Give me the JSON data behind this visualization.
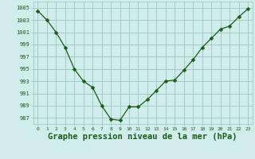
{
  "x": [
    0,
    1,
    2,
    3,
    4,
    5,
    6,
    7,
    8,
    9,
    10,
    11,
    12,
    13,
    14,
    15,
    16,
    17,
    18,
    19,
    20,
    21,
    22,
    23
  ],
  "y": [
    1004.5,
    1003.0,
    1001.0,
    998.5,
    995.0,
    993.0,
    992.0,
    989.0,
    986.8,
    986.6,
    988.8,
    988.8,
    990.0,
    991.5,
    993.0,
    993.2,
    994.8,
    996.5,
    998.5,
    1000.0,
    1001.5,
    1002.0,
    1003.5,
    1004.8
  ],
  "line_color": "#1a5c1a",
  "marker": "D",
  "marker_size": 2.5,
  "background_color": "#d0eceb",
  "grid_color": "#9dc4c3",
  "xlabel": "Graphe pression niveau de la mer (hPa)",
  "xlabel_fontsize": 7.5,
  "ytick_values": [
    987,
    989,
    991,
    993,
    995,
    997,
    999,
    1001,
    1003,
    1005
  ],
  "ylim": [
    986.0,
    1006.0
  ],
  "xlim": [
    -0.5,
    23.5
  ],
  "xtick_labels": [
    "0",
    "1",
    "2",
    "3",
    "4",
    "5",
    "6",
    "7",
    "8",
    "9",
    "10",
    "11",
    "12",
    "13",
    "14",
    "15",
    "16",
    "17",
    "18",
    "19",
    "20",
    "21",
    "22",
    "23"
  ]
}
